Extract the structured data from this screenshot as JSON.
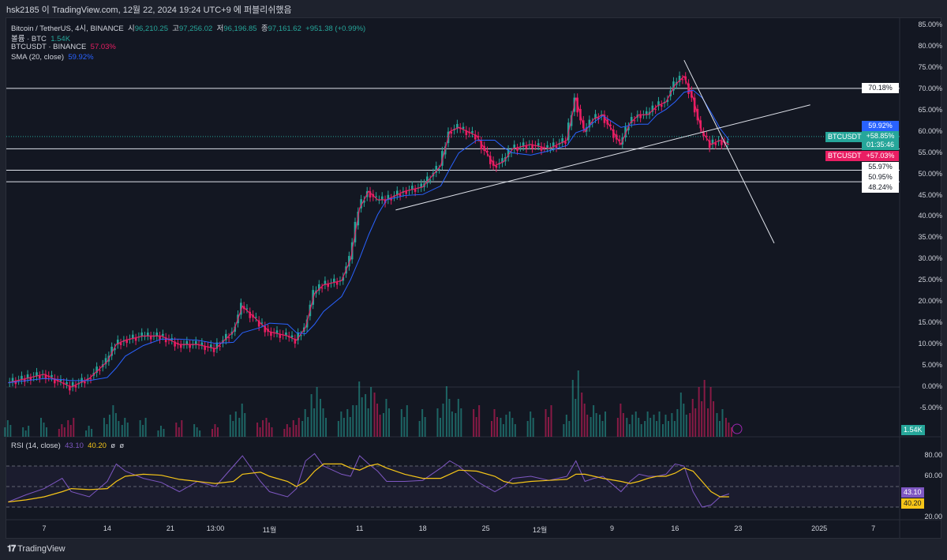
{
  "header": {
    "publish_line": "hsk2185 이 TradingView.com, 12월 22, 2024 19:24 UTC+9 에 퍼블리쉬했음"
  },
  "legend": {
    "symbol": "Bitcoin / TetherUS, 4시, BINANCE",
    "o_label": "시",
    "o": "96,210.25",
    "h_label": "고",
    "h": "97,256.02",
    "l_label": "저",
    "l": "96,196.85",
    "c_label": "종",
    "c": "97,161.62",
    "chg": "+951.38 (+0.99%)",
    "volume_label": "볼륨 · BTC",
    "volume_value": "1.54K",
    "compare_label": "BTCUSDT · BINANCE",
    "compare_value": "57.03%",
    "sma_label": "SMA (20, close)",
    "sma_value": "59.92%",
    "rsi_label": "RSI (14, close)",
    "rsi_value": "43.10",
    "rsi_ma_value": "40.20",
    "rsi_extra1": "ø",
    "rsi_extra2": "ø"
  },
  "price_axis": [
    "85.00%",
    "80.00%",
    "75.00%",
    "70.00%",
    "65.00%",
    "60.00%",
    "55.00%",
    "50.00%",
    "45.00%",
    "40.00%",
    "35.00%",
    "30.00%",
    "25.00%",
    "20.00%",
    "15.00%",
    "10.00%",
    "5.00%",
    "0.00%",
    "-5.00%"
  ],
  "rsi_axis": [
    "80.00",
    "60.00",
    "20.00"
  ],
  "tags": {
    "level_70": "70.18%",
    "sma": "59.92%",
    "btc_name": "BTCUSDT",
    "btc_val": "+58.85%",
    "countdown": "01:35:46",
    "cmp_name": "BTCUSDT",
    "cmp_val": "+57.03%",
    "l1": "55.97%",
    "l2": "50.95%",
    "l3": "48.24%",
    "vol": "1.54K"
  },
  "time_axis": [
    {
      "t": "7",
      "d": "2024-10-07"
    },
    {
      "t": "14",
      "d": "2024-10-14"
    },
    {
      "t": "21",
      "d": "2024-10-21"
    },
    {
      "t": "13:00",
      "d": "2024-10-26"
    },
    {
      "t": "11월",
      "d": "2024-11-01"
    },
    {
      "t": "11",
      "d": "2024-11-11"
    },
    {
      "t": "18",
      "d": "2024-11-18"
    },
    {
      "t": "25",
      "d": "2024-11-25"
    },
    {
      "t": "12월",
      "d": "2024-12-01"
    },
    {
      "t": "9",
      "d": "2024-12-09"
    },
    {
      "t": "16",
      "d": "2024-12-16"
    },
    {
      "t": "23",
      "d": "2024-12-23"
    },
    {
      "t": "2025",
      "d": "2025-01-01"
    },
    {
      "t": "7",
      "d": "2025-01-07"
    }
  ],
  "footer": {
    "brand": "TradingView"
  },
  "colors": {
    "up": "#26a69a",
    "down": "#e91e63",
    "sma": "#2962ff",
    "rsi": "#7e57c2",
    "rsi_ma": "#f5c518",
    "bg": "#131722"
  },
  "chart_data": {
    "type": "candlestick",
    "ylabel": "",
    "ylim": [
      -8,
      87
    ],
    "unit": "%",
    "horizontal_levels": [
      70.18,
      55.97,
      50.95,
      48.24
    ],
    "current_value": 58.85,
    "trend_lines": [
      {
        "from": [
          "2024-11-15",
          41.6
        ],
        "to": [
          "2024-12-31",
          66.3
        ]
      },
      {
        "from": [
          "2024-12-17",
          76.8
        ],
        "to": [
          "2024-12-27",
          33.8
        ]
      }
    ],
    "price": [
      [
        "2024-10-03",
        1
      ],
      [
        "2024-10-05",
        2
      ],
      [
        "2024-10-07",
        3
      ],
      [
        "2024-10-09",
        1
      ],
      [
        "2024-10-10",
        0
      ],
      [
        "2024-10-12",
        2
      ],
      [
        "2024-10-14",
        6
      ],
      [
        "2024-10-15",
        10
      ],
      [
        "2024-10-16",
        11
      ],
      [
        "2024-10-18",
        12
      ],
      [
        "2024-10-20",
        12
      ],
      [
        "2024-10-22",
        10
      ],
      [
        "2024-10-24",
        10
      ],
      [
        "2024-10-26",
        9
      ],
      [
        "2024-10-28",
        13
      ],
      [
        "2024-10-29",
        19
      ],
      [
        "2024-10-31",
        15
      ],
      [
        "2024-11-01",
        13
      ],
      [
        "2024-11-03",
        12
      ],
      [
        "2024-11-04",
        11
      ],
      [
        "2024-11-05",
        14
      ],
      [
        "2024-11-06",
        22
      ],
      [
        "2024-11-07",
        24
      ],
      [
        "2024-11-09",
        25
      ],
      [
        "2024-11-10",
        30
      ],
      [
        "2024-11-11",
        42
      ],
      [
        "2024-11-12",
        46
      ],
      [
        "2024-11-13",
        44
      ],
      [
        "2024-11-14",
        44
      ],
      [
        "2024-11-16",
        46
      ],
      [
        "2024-11-18",
        47
      ],
      [
        "2024-11-20",
        52
      ],
      [
        "2024-11-21",
        60
      ],
      [
        "2024-11-22",
        61
      ],
      [
        "2024-11-24",
        59
      ],
      [
        "2024-11-26",
        52
      ],
      [
        "2024-11-27",
        53
      ],
      [
        "2024-11-28",
        56
      ],
      [
        "2024-11-30",
        57
      ],
      [
        "2024-12-02",
        56
      ],
      [
        "2024-12-04",
        58
      ],
      [
        "2024-12-05",
        68
      ],
      [
        "2024-12-06",
        60
      ],
      [
        "2024-12-07",
        63
      ],
      [
        "2024-12-08",
        64
      ],
      [
        "2024-12-10",
        57
      ],
      [
        "2024-12-11",
        62
      ],
      [
        "2024-12-12",
        64
      ],
      [
        "2024-12-13",
        64
      ],
      [
        "2024-12-14",
        66
      ],
      [
        "2024-12-15",
        67
      ],
      [
        "2024-12-16",
        71
      ],
      [
        "2024-12-17",
        73
      ],
      [
        "2024-12-18",
        68
      ],
      [
        "2024-12-19",
        60
      ],
      [
        "2024-12-20",
        57
      ],
      [
        "2024-12-21",
        58
      ],
      [
        "2024-12-22",
        57
      ]
    ],
    "volume": [
      3,
      2,
      3,
      2,
      3,
      2,
      4,
      5,
      3,
      3,
      2,
      3,
      2,
      2,
      4,
      6,
      3,
      3,
      2,
      3,
      5,
      9,
      6,
      4,
      5,
      10,
      9,
      7,
      6,
      5,
      5,
      6,
      8,
      6,
      5,
      5,
      4,
      4,
      4,
      5,
      4,
      12,
      7,
      5,
      4,
      6,
      4,
      4,
      4,
      4,
      4,
      5,
      7,
      6,
      9,
      9,
      5,
      3
    ],
    "rsi": {
      "ylim": [
        10,
        90
      ],
      "levels": [
        70,
        50,
        30
      ],
      "values": [
        35,
        42,
        48,
        58,
        45,
        40,
        55,
        72,
        65,
        58,
        54,
        45,
        55,
        50,
        70,
        80,
        55,
        45,
        40,
        48,
        75,
        82,
        70,
        62,
        60,
        80,
        72,
        65,
        55,
        55,
        56,
        68,
        75,
        70,
        55,
        45,
        50,
        58,
        60,
        56,
        60,
        75,
        55,
        58,
        60,
        45,
        55,
        62,
        60,
        60,
        62,
        72,
        70,
        45,
        30,
        32,
        40,
        43
      ],
      "ma": [
        35,
        37,
        40,
        45,
        48,
        47,
        48,
        55,
        60,
        62,
        61,
        57,
        55,
        53,
        55,
        62,
        64,
        60,
        55,
        50,
        55,
        65,
        72,
        72,
        68,
        66,
        70,
        72,
        68,
        62,
        58,
        58,
        62,
        66,
        65,
        60,
        55,
        53,
        55,
        56,
        57,
        62,
        62,
        60,
        58,
        55,
        53,
        55,
        58,
        60,
        60,
        63,
        68,
        65,
        55,
        45,
        40,
        40
      ]
    }
  }
}
